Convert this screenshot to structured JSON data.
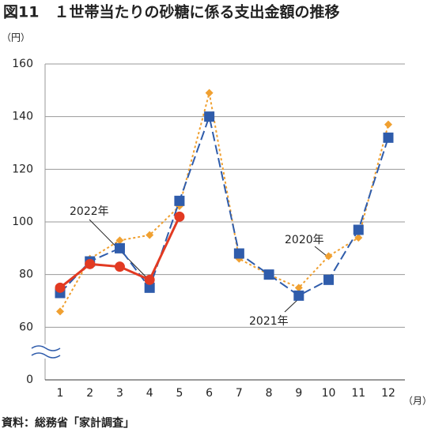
{
  "chart_data": {
    "type": "line",
    "title": "図11　１世帯当たりの砂糖に係る支出金額の推移",
    "y_unit": "（円）",
    "x_unit": "（月）",
    "source": "資料：総務省「家計調査」",
    "categories": [
      "1",
      "2",
      "3",
      "4",
      "5",
      "6",
      "7",
      "8",
      "9",
      "10",
      "11",
      "12"
    ],
    "series": [
      {
        "name": "2020年",
        "color": "#f0a030",
        "marker": "diamond",
        "line_style": "dotted",
        "values": [
          66,
          86,
          93,
          95,
          106,
          149,
          86,
          80,
          75,
          87,
          94,
          137
        ]
      },
      {
        "name": "2021年",
        "color": "#2f5cab",
        "marker": "square",
        "line_style": "dashed",
        "values": [
          73,
          85,
          90,
          75,
          108,
          140,
          88,
          80,
          72,
          78,
          97,
          132
        ]
      },
      {
        "name": "2022年",
        "color": "#e23a22",
        "marker": "circle",
        "line_style": "solid",
        "values": [
          75,
          84,
          83,
          78,
          102,
          null,
          null,
          null,
          null,
          null,
          null,
          null
        ]
      }
    ],
    "ylim": [
      0,
      160
    ],
    "yticks": [
      0,
      60,
      80,
      100,
      120,
      140,
      160
    ],
    "broken_axis": [
      0,
      60
    ],
    "grid": true
  }
}
